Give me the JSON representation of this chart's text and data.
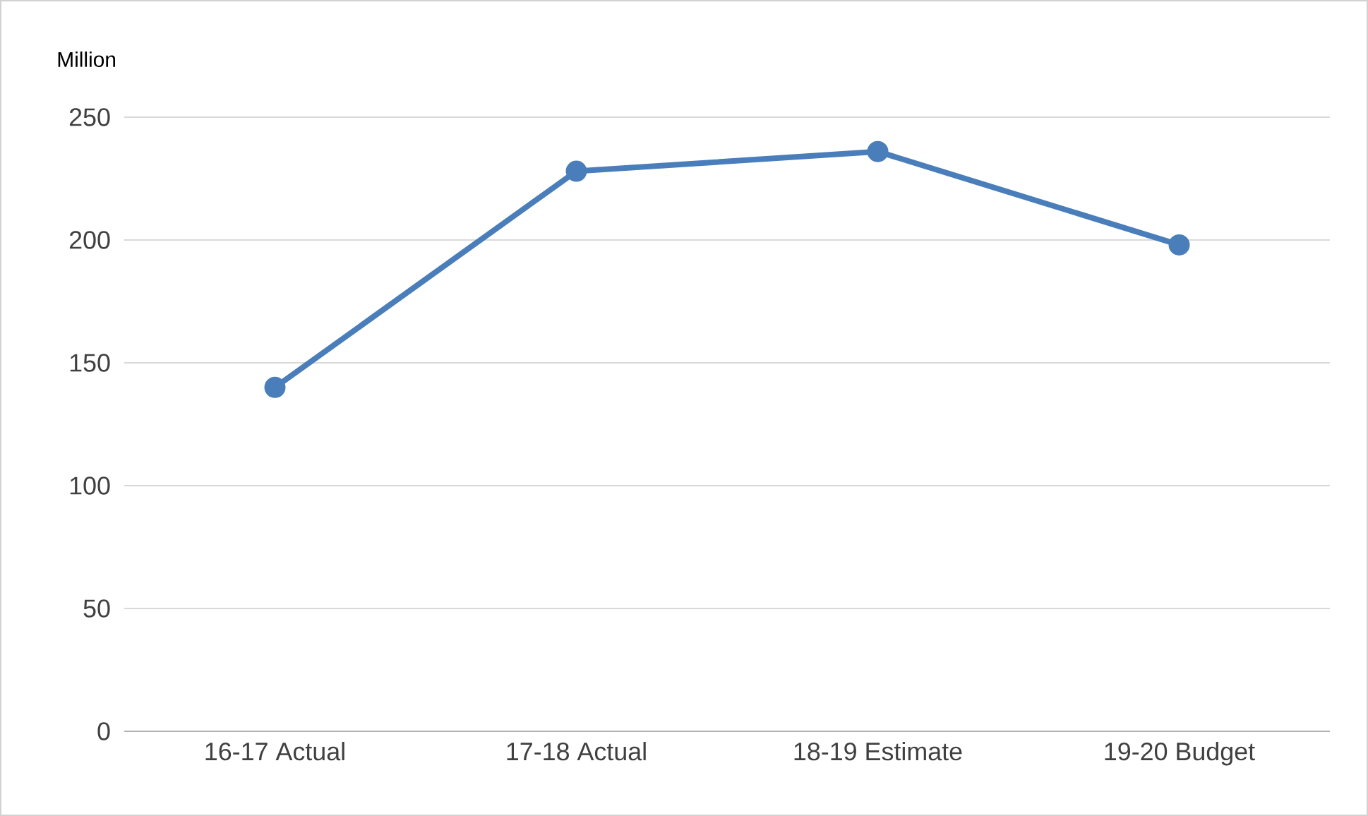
{
  "chart_data": {
    "type": "line",
    "ylabel": "Million",
    "categories": [
      "16-17 Actual",
      "17-18 Actual",
      "18-19 Estimate",
      "19-20 Budget"
    ],
    "series": [
      {
        "color": "#4a7ebb",
        "values": [
          140,
          228,
          236,
          198
        ]
      }
    ],
    "ylim": [
      0,
      250
    ],
    "yticks": [
      0,
      50,
      100,
      150,
      200,
      250
    ],
    "grid": "y",
    "marker": "circle",
    "line_style": "solid"
  }
}
